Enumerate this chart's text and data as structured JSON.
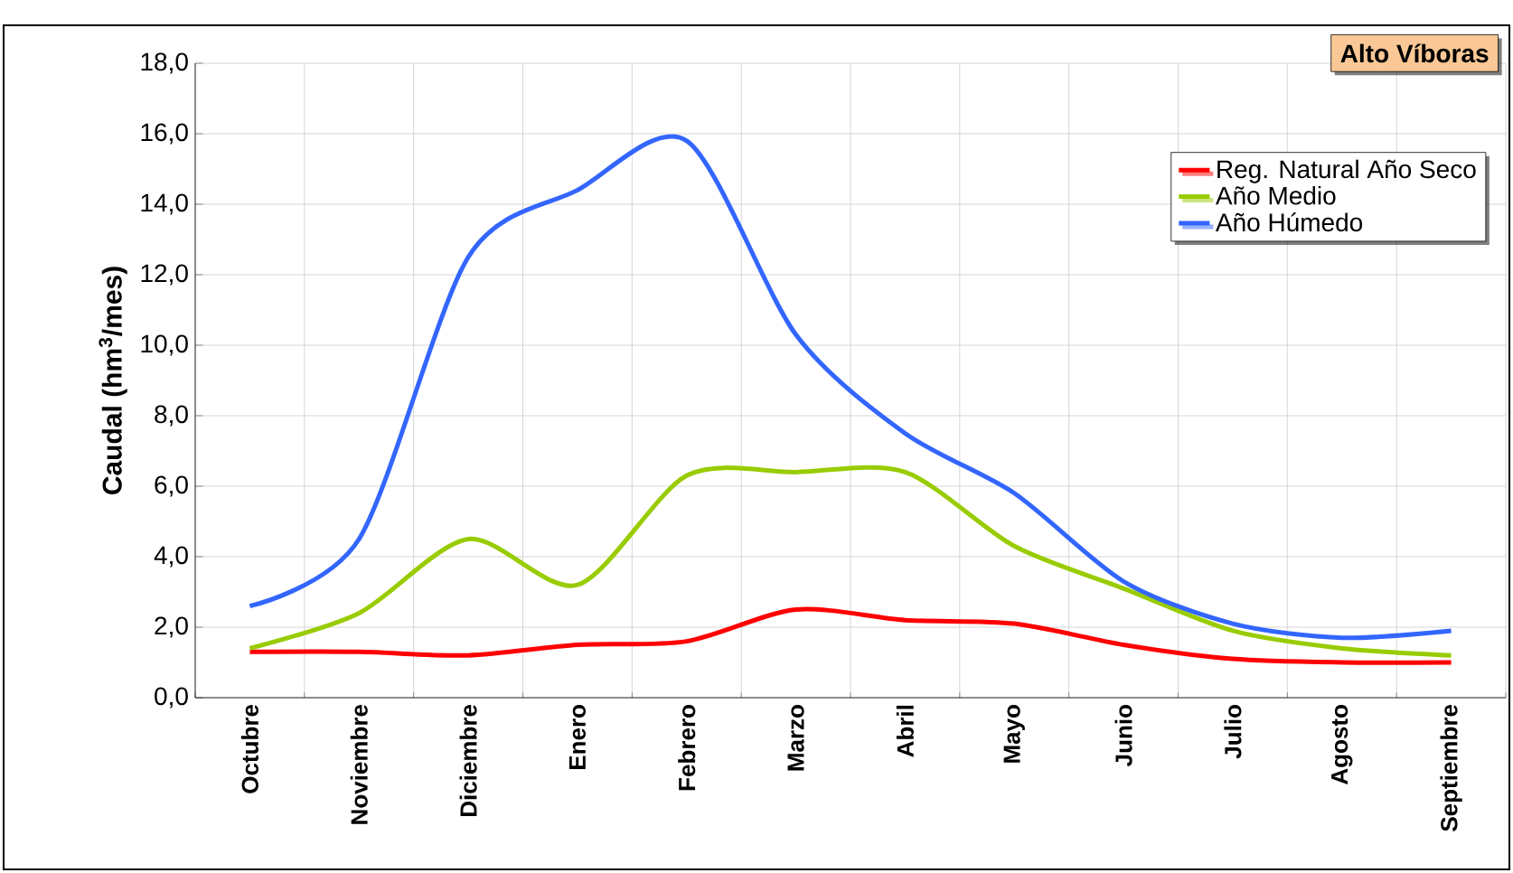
{
  "chart_data": {
    "type": "line",
    "title": "Alto Víboras",
    "ylabel": "Caudal (hm$^{3}$/mes)",
    "categories": [
      "Octubre",
      "Noviembre",
      "Diciembre",
      "Enero",
      "Febrero",
      "Marzo",
      "Abril",
      "Mayo",
      "Junio",
      "Julio",
      "Agosto",
      "Septiembre"
    ],
    "series": [
      {
        "name": "Reg. Natural Año Seco",
        "color": "#ff0000",
        "values": [
          1.3,
          1.3,
          1.2,
          1.5,
          1.6,
          2.5,
          2.2,
          2.1,
          1.5,
          1.1,
          1.0,
          1.0
        ]
      },
      {
        "name": "Año Medio",
        "color": "#99cc00",
        "values": [
          1.4,
          2.4,
          4.5,
          3.2,
          6.3,
          6.4,
          6.4,
          4.3,
          3.1,
          1.9,
          1.4,
          1.2
        ]
      },
      {
        "name": "Año Húmedo",
        "color": "#3366ff",
        "values": [
          2.6,
          4.5,
          12.5,
          14.4,
          15.8,
          10.3,
          7.5,
          5.8,
          3.3,
          2.1,
          1.7,
          1.9
        ]
      }
    ],
    "ylim": [
      0,
      18
    ],
    "yticks": [
      {
        "value": 0,
        "label": "0,0"
      },
      {
        "value": 2,
        "label": "2,0"
      },
      {
        "value": 4,
        "label": "4,0"
      },
      {
        "value": 6,
        "label": "6,0"
      },
      {
        "value": 8,
        "label": "8,0"
      },
      {
        "value": 10,
        "label": "10,0"
      },
      {
        "value": 12,
        "label": "12,0"
      },
      {
        "value": 14,
        "label": "14,0"
      },
      {
        "value": 16,
        "label": "16,0"
      },
      {
        "value": 18,
        "label": "18,0"
      }
    ],
    "grid": true,
    "legend": "top right",
    "marker": "none",
    "line_style": "solid"
  }
}
